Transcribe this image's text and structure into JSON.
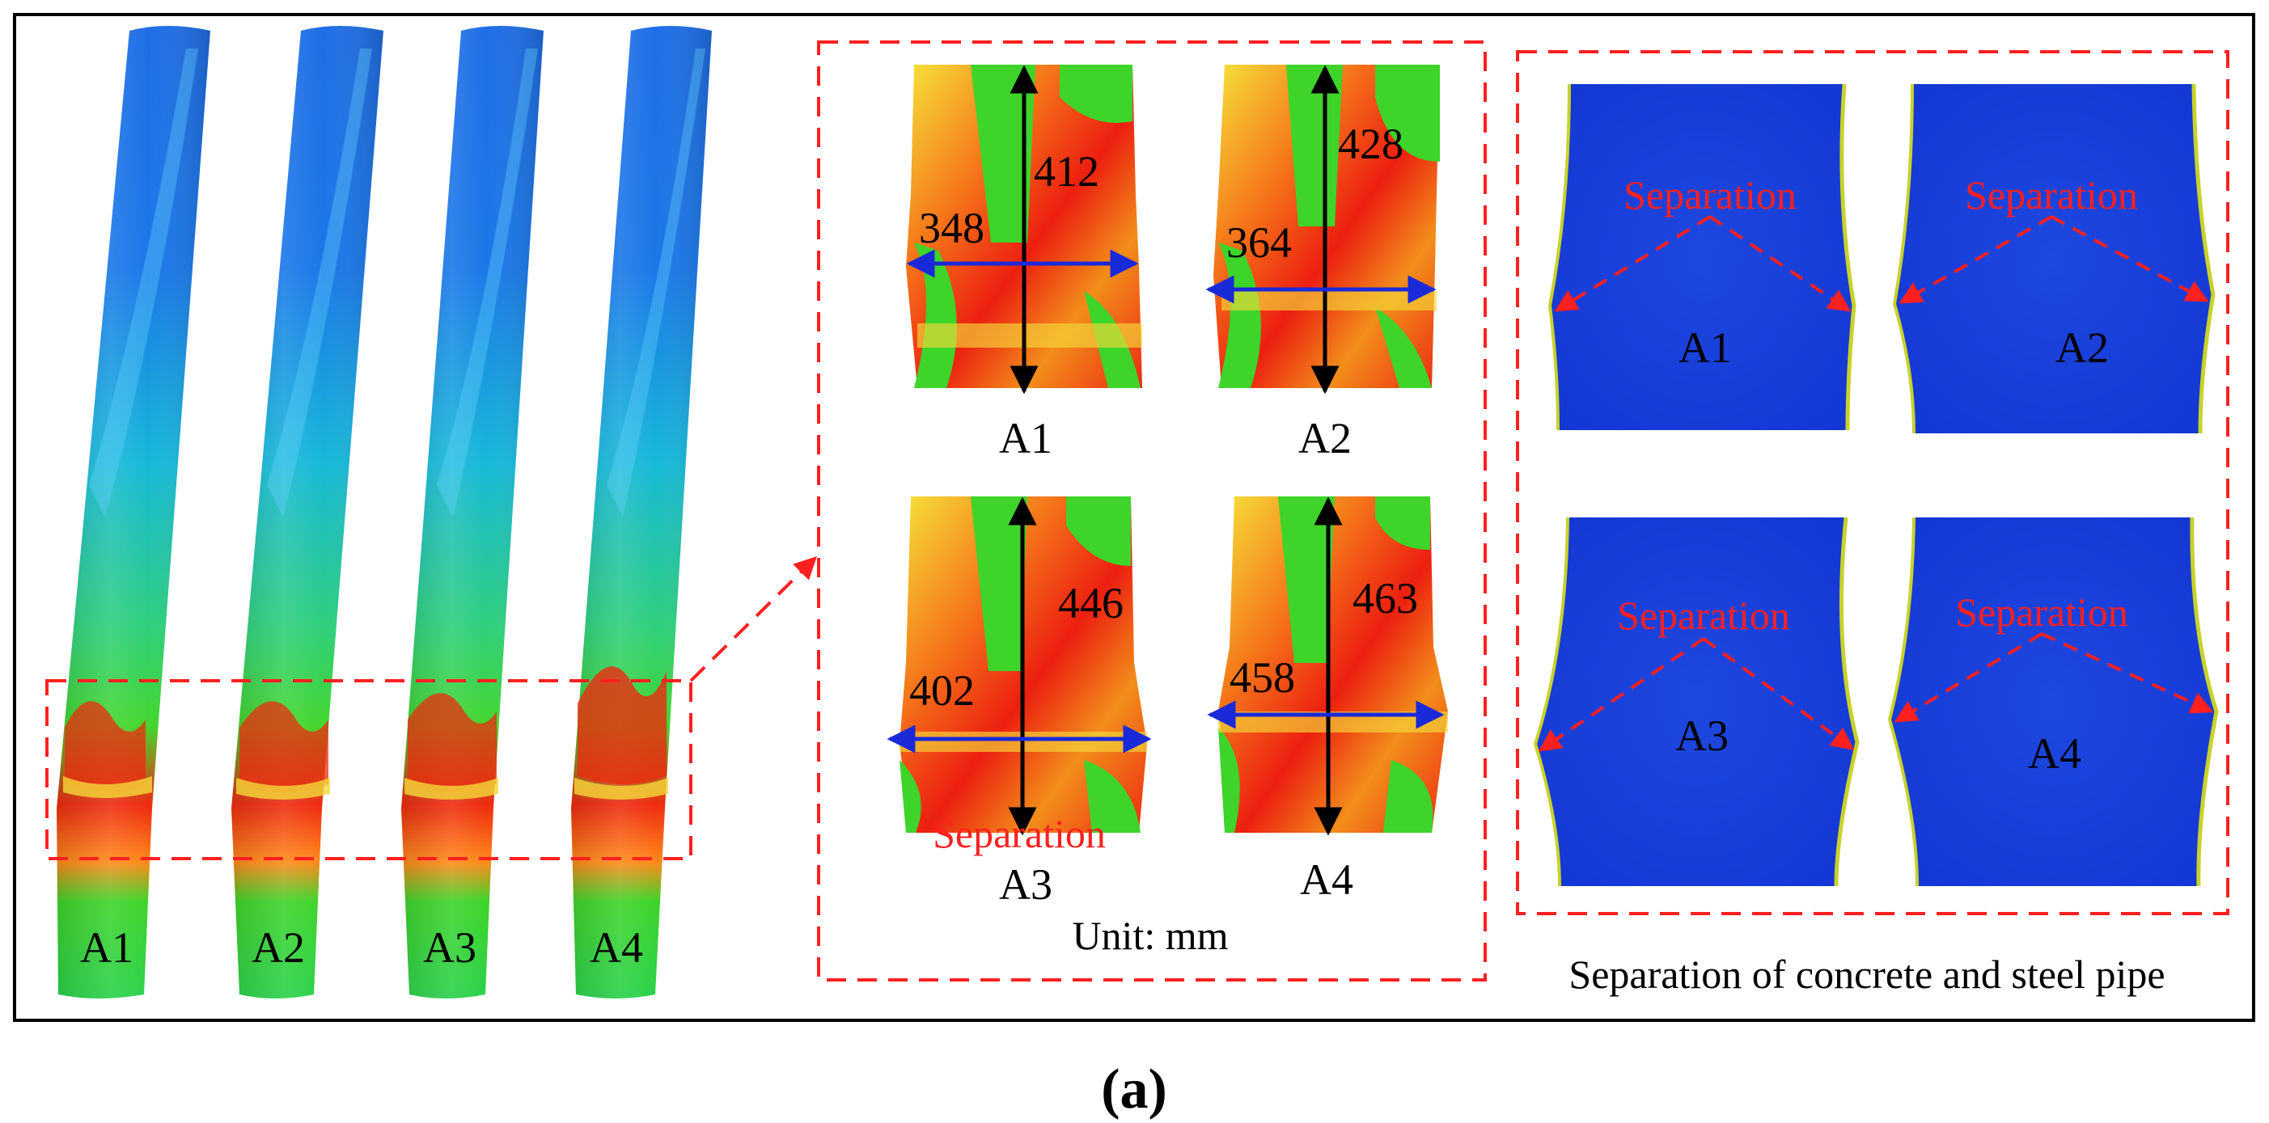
{
  "figure": {
    "columns": [
      "A1",
      "A2",
      "A3",
      "A4"
    ],
    "zoom_panel": {
      "specimens": [
        {
          "label": "A1",
          "vertical": "412",
          "horizontal": "348"
        },
        {
          "label": "A2",
          "vertical": "428",
          "horizontal": "364"
        },
        {
          "label": "A3",
          "vertical": "446",
          "horizontal": "402",
          "note": "Separation"
        },
        {
          "label": "A4",
          "vertical": "463",
          "horizontal": "458"
        }
      ],
      "unit": "Unit: mm"
    },
    "separation_panel": {
      "items": [
        {
          "label": "A1",
          "annotation": "Separation"
        },
        {
          "label": "A2",
          "annotation": "Separation"
        },
        {
          "label": "A3",
          "annotation": "Separation"
        },
        {
          "label": "A4",
          "annotation": "Separation"
        }
      ],
      "caption": "Separation of concrete and steel pipe"
    },
    "subfigure_label": "(a)",
    "colors": {
      "dashed_box": "#ff2020",
      "arrow_black": "#000000",
      "arrow_blue": "#1a2ad8",
      "steel_blue": "#1438d6",
      "contour_red": "#ee1c0c",
      "contour_green": "#33d81c"
    }
  }
}
